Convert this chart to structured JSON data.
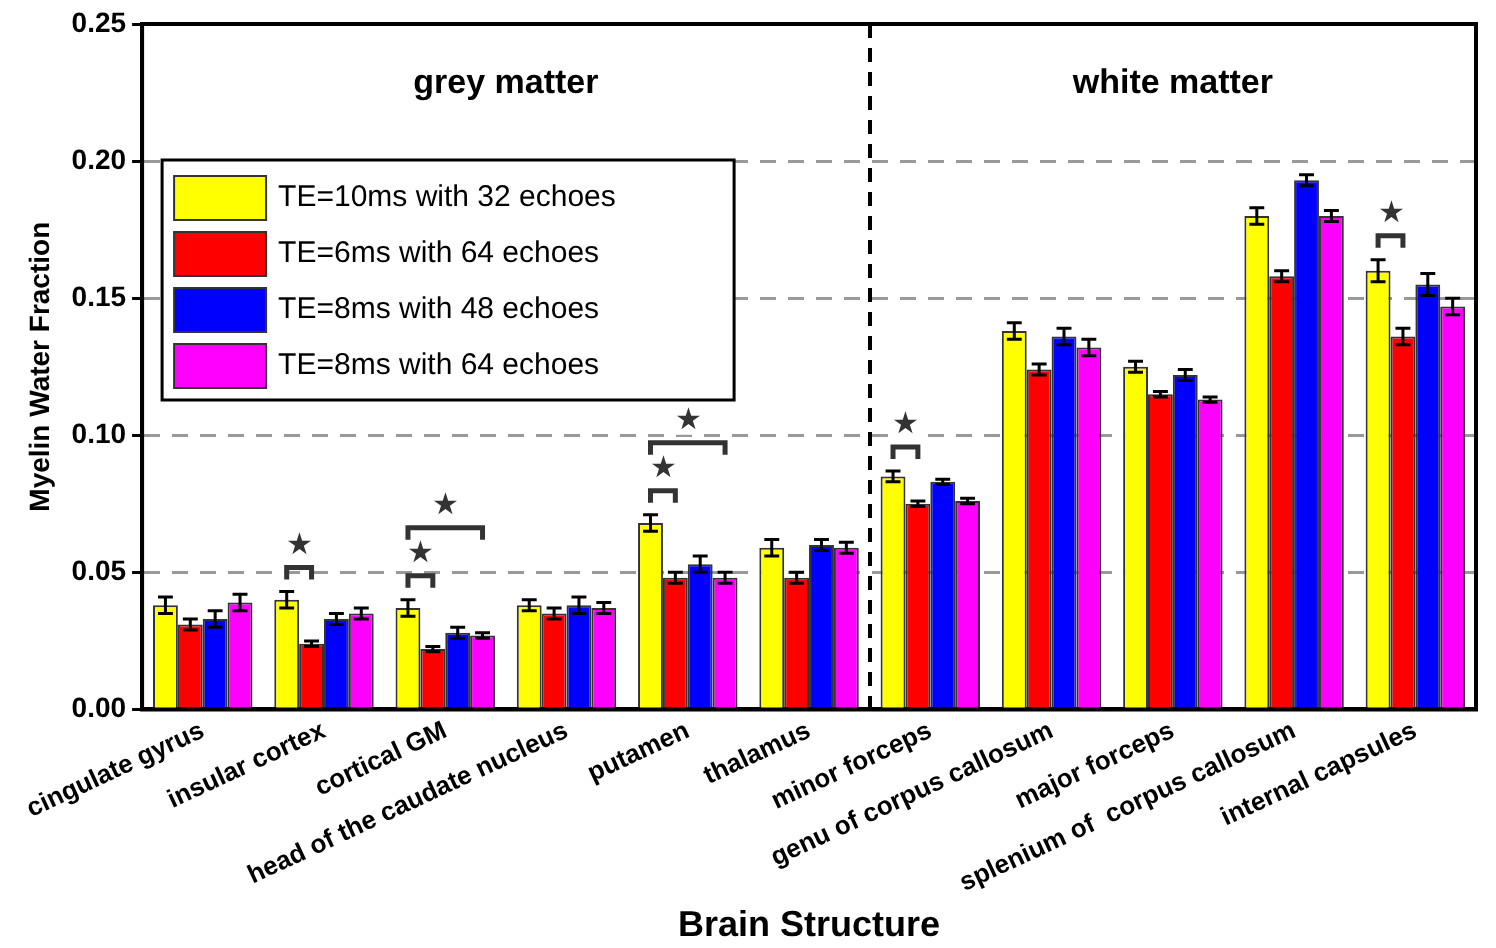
{
  "chart_data": {
    "type": "bar",
    "xlabel": "Brain Structure",
    "ylabel": "Myelin Water Fraction",
    "categories": [
      "cingulate gyrus",
      "insular cortex",
      "cortical GM",
      "head of the caudate nucleus",
      "putamen",
      "thalamus",
      "minor forceps",
      "genu of corpus callosum",
      "major forceps",
      "splenium of  corpus callosum",
      "internal capsules"
    ],
    "series": [
      {
        "name": "TE=10ms with 32 echoes",
        "color": "#ffff00",
        "values": [
          0.038,
          0.04,
          0.037,
          0.038,
          0.068,
          0.059,
          0.085,
          0.138,
          0.125,
          0.18,
          0.16
        ],
        "errors": [
          0.003,
          0.003,
          0.003,
          0.002,
          0.003,
          0.003,
          0.002,
          0.003,
          0.002,
          0.003,
          0.004
        ]
      },
      {
        "name": "TE=6ms with 64 echoes",
        "color": "#ff0000",
        "values": [
          0.031,
          0.024,
          0.022,
          0.035,
          0.048,
          0.048,
          0.075,
          0.124,
          0.115,
          0.158,
          0.136
        ],
        "errors": [
          0.002,
          0.001,
          0.001,
          0.002,
          0.002,
          0.002,
          0.001,
          0.002,
          0.001,
          0.002,
          0.003
        ]
      },
      {
        "name": "TE=8ms with 48 echoes",
        "color": "#0000ff",
        "values": [
          0.033,
          0.033,
          0.028,
          0.038,
          0.053,
          0.06,
          0.083,
          0.136,
          0.122,
          0.193,
          0.155
        ],
        "errors": [
          0.003,
          0.002,
          0.002,
          0.003,
          0.003,
          0.002,
          0.001,
          0.003,
          0.002,
          0.002,
          0.004
        ]
      },
      {
        "name": "TE=8ms with 64 echoes",
        "color": "#ff00ff",
        "values": [
          0.039,
          0.035,
          0.027,
          0.037,
          0.048,
          0.059,
          0.076,
          0.132,
          0.113,
          0.18,
          0.147
        ],
        "errors": [
          0.003,
          0.002,
          0.001,
          0.002,
          0.002,
          0.002,
          0.001,
          0.003,
          0.001,
          0.002,
          0.003
        ]
      }
    ],
    "ylim": [
      0,
      0.25
    ],
    "yticks": [
      {
        "value": 0,
        "label": "0.00"
      },
      {
        "value": 0.05,
        "label": "0.05"
      },
      {
        "value": 0.1,
        "label": "0.10"
      },
      {
        "value": 0.15,
        "label": "0.15"
      },
      {
        "value": 0.2,
        "label": "0.20"
      },
      {
        "value": 0.25,
        "label": "0.25"
      }
    ],
    "grid": "y",
    "legend": "top left",
    "annotations": [
      "grey matter",
      "white matter",
      "★",
      "★",
      "★",
      "★",
      "★",
      "★",
      "★"
    ]
  }
}
